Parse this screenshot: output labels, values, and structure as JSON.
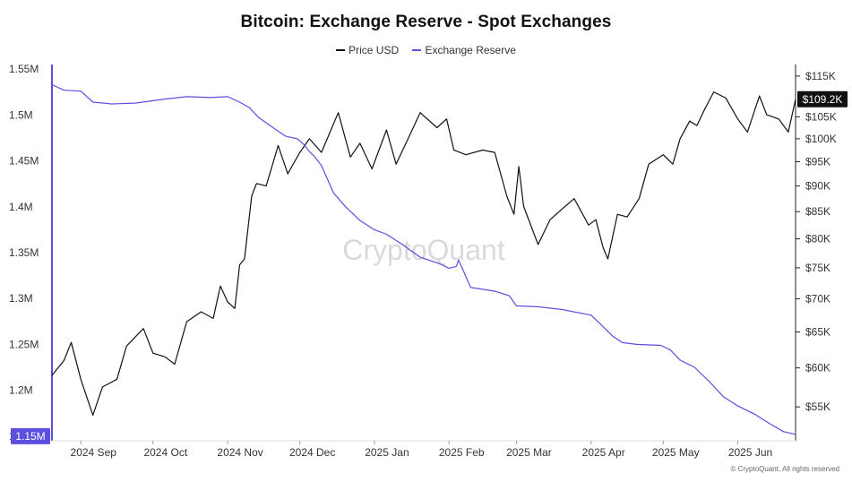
{
  "chart_data": {
    "type": "line",
    "title": "Bitcoin: Exchange Reserve - Spot Exchanges",
    "watermark": "CryptoQuant",
    "credit": "© CryptoQuant. All rights reserved",
    "x_axis": {
      "tick_labels": [
        "2024 Sep",
        "2024 Oct",
        "2024 Nov",
        "2024 Dec",
        "2025 Jan",
        "2025 Feb",
        "2025 Mar",
        "2025 Apr",
        "2025 May",
        "2025 Jun"
      ],
      "range": [
        "2024-08-20",
        "2025-06-25"
      ]
    },
    "y_left": {
      "tick_labels": [
        "1.55M",
        "1.5M",
        "1.45M",
        "1.4M",
        "1.35M",
        "1.3M",
        "1.25M",
        "1.2M",
        "1.15M"
      ],
      "tick_values": [
        1550000,
        1500000,
        1450000,
        1400000,
        1350000,
        1300000,
        1250000,
        1200000,
        1150000
      ],
      "range": [
        1145000,
        1555000
      ],
      "current_label": "1.15M",
      "current_value": 1150000
    },
    "y_right": {
      "scale": "log",
      "tick_labels": [
        "$115K",
        "$105K",
        "$100K",
        "$95K",
        "$90K",
        "$85K",
        "$80K",
        "$75K",
        "$70K",
        "$65K",
        "$60K",
        "$55K"
      ],
      "tick_values": [
        115000,
        105000,
        100000,
        95000,
        90000,
        85000,
        80000,
        75000,
        70000,
        65000,
        60000,
        55000
      ],
      "range": [
        51000,
        118000
      ],
      "current_label": "$109.2K",
      "current_value": 109200
    },
    "series": [
      {
        "name": "Price USD",
        "axis": "right",
        "color": "#111111",
        "x": [
          "2024-08-20",
          "2024-08-25",
          "2024-08-28",
          "2024-09-01",
          "2024-09-06",
          "2024-09-10",
          "2024-09-16",
          "2024-09-20",
          "2024-09-27",
          "2024-10-01",
          "2024-10-06",
          "2024-10-10",
          "2024-10-15",
          "2024-10-21",
          "2024-10-26",
          "2024-10-29",
          "2024-11-01",
          "2024-11-04",
          "2024-11-06",
          "2024-11-08",
          "2024-11-11",
          "2024-11-13",
          "2024-11-17",
          "2024-11-22",
          "2024-11-26",
          "2024-12-01",
          "2024-12-05",
          "2024-12-10",
          "2024-12-17",
          "2024-12-22",
          "2024-12-26",
          "2024-12-31",
          "2025-01-06",
          "2025-01-10",
          "2025-01-15",
          "2025-01-20",
          "2025-01-27",
          "2025-01-31",
          "2025-02-03",
          "2025-02-08",
          "2025-02-15",
          "2025-02-20",
          "2025-02-25",
          "2025-02-28",
          "2025-03-02",
          "2025-03-04",
          "2025-03-10",
          "2025-03-15",
          "2025-03-20",
          "2025-03-25",
          "2025-03-31",
          "2025-04-03",
          "2025-04-06",
          "2025-04-08",
          "2025-04-12",
          "2025-04-16",
          "2025-04-21",
          "2025-04-25",
          "2025-05-01",
          "2025-05-05",
          "2025-05-08",
          "2025-05-12",
          "2025-05-15",
          "2025-05-18",
          "2025-05-22",
          "2025-05-27",
          "2025-06-01",
          "2025-06-05",
          "2025-06-10",
          "2025-06-13",
          "2025-06-18",
          "2025-06-22",
          "2025-06-25"
        ],
        "values": [
          59000,
          61000,
          63500,
          58500,
          54000,
          57500,
          58500,
          63000,
          65500,
          62000,
          61500,
          60500,
          66500,
          68000,
          67000,
          72000,
          69500,
          68500,
          75500,
          76500,
          88000,
          90500,
          90000,
          98500,
          92500,
          97000,
          100000,
          97000,
          106000,
          96000,
          99000,
          93500,
          102000,
          94500,
          100000,
          106000,
          102500,
          104500,
          97500,
          96500,
          97500,
          97000,
          88000,
          84500,
          94000,
          86000,
          79000,
          83500,
          85500,
          87500,
          82500,
          83500,
          78500,
          76500,
          84500,
          84000,
          87500,
          94500,
          96500,
          94500,
          100000,
          104000,
          103000,
          106500,
          111000,
          109500,
          104500,
          101500,
          110000,
          105500,
          104500,
          101500,
          109200
        ]
      },
      {
        "name": "Exchange Reserve",
        "axis": "left",
        "color": "#5b4fe0",
        "x": [
          "2024-08-20",
          "2024-08-25",
          "2024-09-01",
          "2024-09-06",
          "2024-09-14",
          "2024-09-24",
          "2024-10-05",
          "2024-10-15",
          "2024-10-25",
          "2024-11-01",
          "2024-11-06",
          "2024-11-10",
          "2024-11-14",
          "2024-11-20",
          "2024-11-25",
          "2024-11-30",
          "2024-12-03",
          "2024-12-05",
          "2024-12-07",
          "2024-12-10",
          "2024-12-15",
          "2024-12-20",
          "2024-12-26",
          "2025-01-01",
          "2025-01-06",
          "2025-01-12",
          "2025-01-20",
          "2025-01-28",
          "2025-02-01",
          "2025-02-04",
          "2025-02-05",
          "2025-02-10",
          "2025-02-20",
          "2025-02-26",
          "2025-03-01",
          "2025-03-10",
          "2025-03-20",
          "2025-04-01",
          "2025-04-05",
          "2025-04-10",
          "2025-04-14",
          "2025-04-20",
          "2025-04-30",
          "2025-05-04",
          "2025-05-08",
          "2025-05-14",
          "2025-05-20",
          "2025-05-26",
          "2025-06-01",
          "2025-06-08",
          "2025-06-14",
          "2025-06-20",
          "2025-06-25"
        ],
        "values": [
          1533000,
          1527000,
          1526000,
          1514000,
          1512000,
          1513000,
          1517000,
          1520000,
          1519000,
          1520000,
          1514000,
          1508000,
          1497000,
          1486000,
          1477000,
          1474000,
          1467000,
          1460000,
          1455000,
          1445000,
          1415000,
          1400000,
          1385000,
          1375000,
          1370000,
          1360000,
          1345000,
          1338000,
          1333000,
          1335000,
          1342000,
          1312000,
          1308000,
          1303000,
          1292000,
          1291000,
          1288000,
          1282000,
          1272000,
          1259000,
          1252000,
          1250000,
          1249000,
          1244000,
          1233000,
          1225000,
          1210000,
          1193000,
          1183000,
          1174000,
          1164000,
          1155000,
          1152000
        ]
      }
    ]
  }
}
